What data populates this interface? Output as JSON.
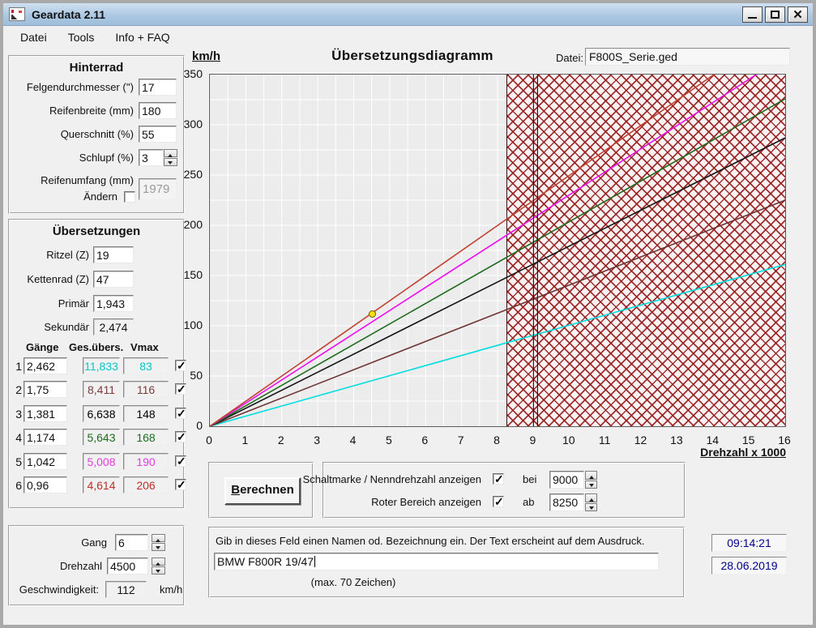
{
  "titlebar": {
    "title": "Geardata 2.11"
  },
  "menu": {
    "items": [
      "Datei",
      "Tools",
      "Info + FAQ"
    ]
  },
  "hinterrad": {
    "title": "Hinterrad",
    "rows": [
      {
        "label": "Felgendurchmesser ('')",
        "value": "17"
      },
      {
        "label": "Reifenbreite (mm)",
        "value": "180"
      },
      {
        "label": "Querschnitt (%)",
        "value": "55"
      },
      {
        "label": "Schlupf (%)",
        "value": "3"
      }
    ],
    "umfang_label": "Reifenumfang (mm)",
    "aendern_label": "Ändern",
    "umfang_value": "1979"
  },
  "uebersetzungen": {
    "title": "Übersetzungen",
    "ritzel_label": "Ritzel (Z)",
    "ritzel": "19",
    "kettenrad_label": "Kettenrad (Z)",
    "kettenrad": "47",
    "primaer_label": "Primär",
    "primaer": "1,943",
    "sekundaer_label": "Sekundär",
    "sekundaer": "2,474",
    "col_gaenge": "Gänge",
    "col_ges": "Ges.übers.",
    "col_vmax": "Vmax",
    "rows": [
      {
        "num": "1",
        "ratio": "2,462",
        "ges": "11,833",
        "vmax": "83",
        "color": "#00c8c8",
        "checked": true
      },
      {
        "num": "2",
        "ratio": "1,75",
        "ges": "8,411",
        "vmax": "116",
        "color": "#7b3b3b",
        "checked": true
      },
      {
        "num": "3",
        "ratio": "1,381",
        "ges": "6,638",
        "vmax": "148",
        "color": "#000000",
        "checked": true
      },
      {
        "num": "4",
        "ratio": "1,174",
        "ges": "5,643",
        "vmax": "168",
        "color": "#1e6b1e",
        "checked": true
      },
      {
        "num": "5",
        "ratio": "1,042",
        "ges": "5,008",
        "vmax": "190",
        "color": "#e23ee2",
        "checked": true
      },
      {
        "num": "6",
        "ratio": "0,96",
        "ges": "4,614",
        "vmax": "206",
        "color": "#bb3028",
        "checked": true
      }
    ]
  },
  "aktuell": {
    "gang_label": "Gang",
    "gang": "6",
    "drehzahl_label": "Drehzahl",
    "drehzahl": "4500",
    "geschw_label": "Geschwindigkeit:",
    "geschw": "112",
    "unit": "km/h"
  },
  "chart_header": {
    "ylabel": "km/h",
    "title": "Übersetzungsdiagramm",
    "datei_label": "Datei:",
    "datei_value": "F800S_Serie.ged",
    "xlabel": "Drehzahl x 1000"
  },
  "controls": {
    "berechnen": "Berechnen",
    "schaltmarke_label": "Schaltmarke / Nenndrehzahl anzeigen",
    "bei_label": "bei",
    "bei_value": "9000",
    "roter_label": "Roter Bereich anzeigen",
    "ab_label": "ab",
    "ab_value": "8250"
  },
  "name_box": {
    "instruction": "Gib in dieses Feld einen Namen od. Bezeichnung ein. Der Text erscheint auf dem Ausdruck.",
    "value": "BMW F800R 19/47",
    "hint": "(max. 70 Zeichen)"
  },
  "status": {
    "time": "09:14:21",
    "date": "28.06.2019"
  },
  "chart_data": {
    "type": "line",
    "title": "Übersetzungsdiagramm",
    "xlabel": "Drehzahl x 1000",
    "ylabel": "km/h",
    "xlim": [
      0,
      16
    ],
    "ylim": [
      0,
      350
    ],
    "x_ticks": [
      0,
      1,
      2,
      3,
      4,
      5,
      6,
      7,
      8,
      9,
      10,
      11,
      12,
      13,
      14,
      15,
      16
    ],
    "y_ticks": [
      0,
      50,
      100,
      150,
      200,
      250,
      300,
      350
    ],
    "minor_grid_x": 0.5,
    "minor_grid_y": 25,
    "lines_from_origin": true,
    "series": [
      {
        "name": "Gang 1",
        "color": "#00dede",
        "vmax_at_8250rpm": 83
      },
      {
        "name": "Gang 2",
        "color": "#6e3434",
        "vmax_at_8250rpm": 116
      },
      {
        "name": "Gang 3",
        "color": "#151515",
        "vmax_at_8250rpm": 148
      },
      {
        "name": "Gang 4",
        "color": "#1e6b1e",
        "vmax_at_8250rpm": 168
      },
      {
        "name": "Gang 5",
        "color": "#ee10ee",
        "vmax_at_8250rpm": 190
      },
      {
        "name": "Gang 6",
        "color": "#bf4232",
        "vmax_at_8250rpm": 206
      }
    ],
    "red_zone_start": 8.25,
    "shift_mark": 9,
    "marker": {
      "x": 4.5,
      "y": 112,
      "fill": "#ffe000"
    }
  }
}
